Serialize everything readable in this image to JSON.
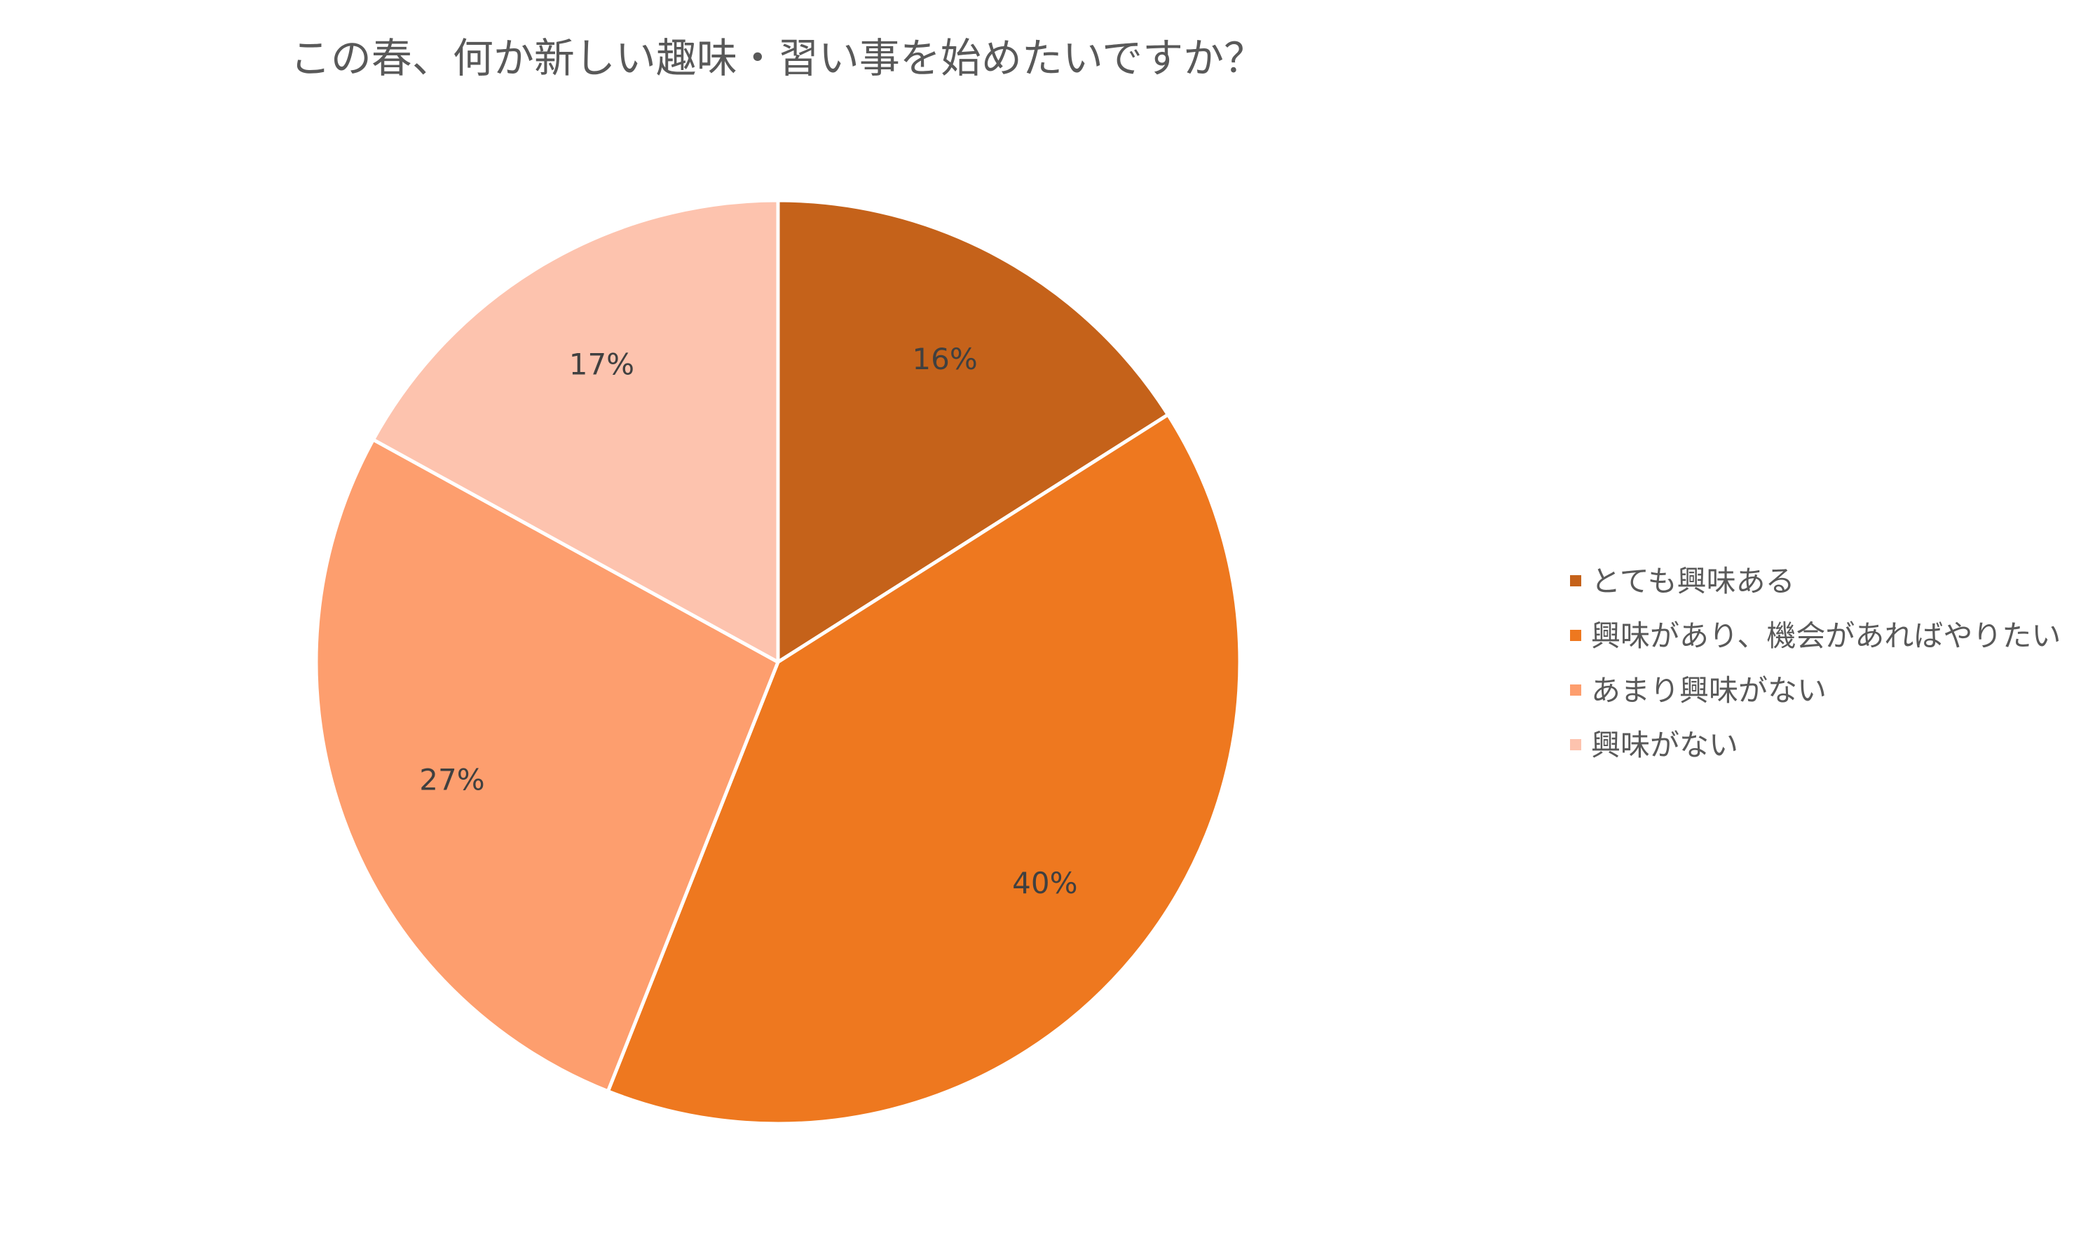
{
  "chart_data": {
    "type": "pie",
    "title": "この春、何か新しい趣味・習い事を始めたいですか？",
    "slices": [
      {
        "label": "とても興味ある",
        "value": 16,
        "value_label": "16%",
        "color": "#C5621A"
      },
      {
        "label": "興味があり、機会があればやりたい",
        "value": 40,
        "value_label": "40%",
        "color": "#EE781F"
      },
      {
        "label": "あまり興味がない",
        "value": 27,
        "value_label": "27%",
        "color": "#FD9E6E"
      },
      {
        "label": "興味がない",
        "value": 17,
        "value_label": "17%",
        "color": "#FDC3AE"
      }
    ],
    "start_angle_deg": 0,
    "direction": "clockwise",
    "slice_border_color": "#ffffff",
    "legend_placement": "right"
  }
}
